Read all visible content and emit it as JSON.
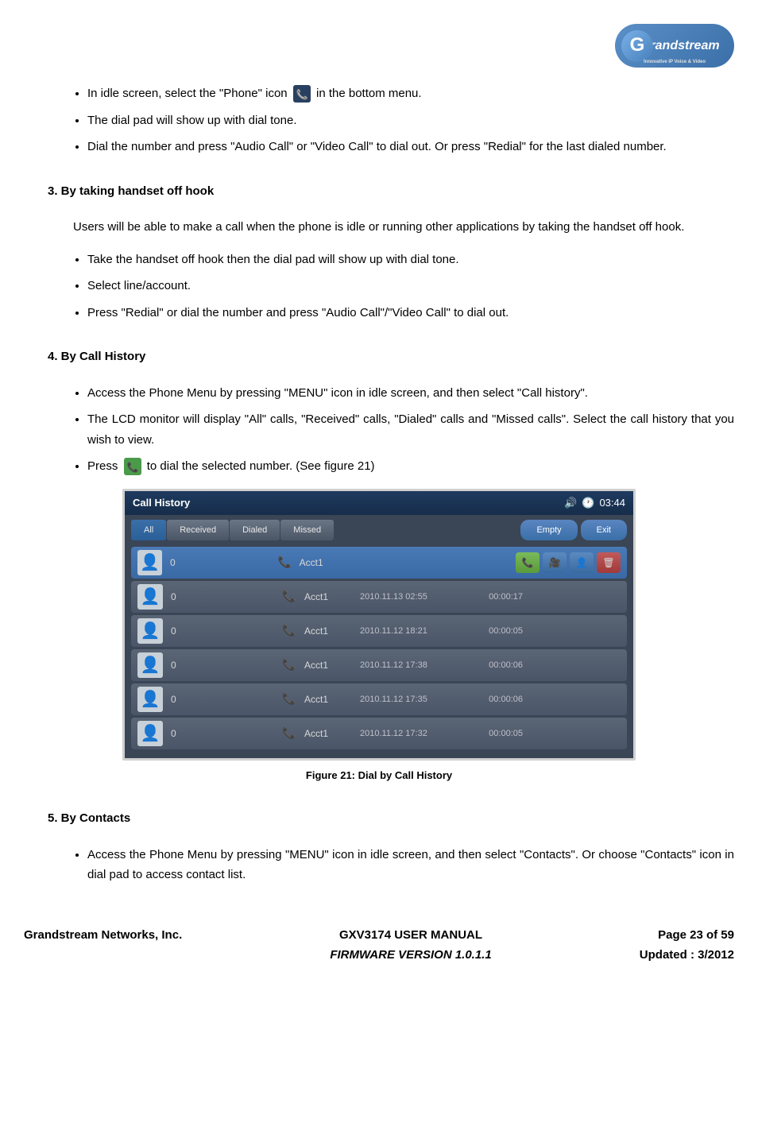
{
  "logo": {
    "text": "randstream",
    "tagline": "Innovative IP Voice & Video"
  },
  "bullets_top": [
    {
      "pre": "In idle screen, select the \"Phone\" icon",
      "post": " in the bottom menu.",
      "icon": "phone"
    },
    {
      "text": "The dial pad will show up with dial tone."
    },
    {
      "text": "Dial the number and press \"Audio Call\" or \"Video Call\" to dial out. Or press \"Redial\" for the last dialed number."
    }
  ],
  "section3": {
    "heading": "3.    By taking handset off hook",
    "intro": "Users will be able to make a call when the phone is idle or running other applications by taking the handset off hook.",
    "bullets": [
      "Take the handset off hook then the dial pad will show up with dial tone.",
      "Select line/account.",
      "Press \"Redial\" or dial the number and press \"Audio Call\"/\"Video Call\" to dial out."
    ]
  },
  "section4": {
    "heading": "4.    By Call History",
    "bullets": [
      {
        "text": "Access the Phone Menu by pressing \"MENU\" icon in idle screen, and then select \"Call history\"."
      },
      {
        "text": "The LCD monitor will display \"All\" calls, \"Received\" calls, \"Dialed\" calls and \"Missed calls\". Select the call history that you wish to view."
      },
      {
        "pre": "Press",
        "post": " to dial the selected number. (See figure 21)",
        "icon": "call"
      }
    ]
  },
  "figure_caption": "Figure 21: Dial by Call History",
  "call_history": {
    "title": "Call History",
    "time": "03:44",
    "tabs": [
      "All",
      "Received",
      "Dialed",
      "Missed"
    ],
    "active_tab": 0,
    "buttons": [
      "Empty",
      "Exit"
    ],
    "rows": [
      {
        "id": "0",
        "dir": "in",
        "acct": "Acct1",
        "date": "",
        "dur": "",
        "sel": true,
        "icons": true
      },
      {
        "id": "0",
        "dir": "in",
        "acct": "Acct1",
        "date": "2010.11.13  02:55",
        "dur": "00:00:17",
        "sel": false,
        "icons": false
      },
      {
        "id": "0",
        "dir": "in",
        "acct": "Acct1",
        "date": "2010.11.12  18:21",
        "dur": "00:00:05",
        "sel": false,
        "icons": false
      },
      {
        "id": "0",
        "dir": "out",
        "acct": "Acct1",
        "date": "2010.11.12  17:38",
        "dur": "00:00:06",
        "sel": false,
        "icons": false
      },
      {
        "id": "0",
        "dir": "out",
        "acct": "Acct1",
        "date": "2010.11.12  17:35",
        "dur": "00:00:06",
        "sel": false,
        "icons": false
      },
      {
        "id": "0",
        "dir": "in",
        "acct": "Acct1",
        "date": "2010.11.12  17:32",
        "dur": "00:00:05",
        "sel": false,
        "icons": false
      }
    ]
  },
  "section5": {
    "heading": "5.    By Contacts",
    "bullets": [
      "Access the Phone Menu by pressing \"MENU\" icon in idle screen, and then select \"Contacts\". Or choose \"Contacts\" icon in dial pad to access contact list."
    ]
  },
  "footer": {
    "company": "Grandstream Networks, Inc.",
    "manual": "GXV3174 USER MANUAL",
    "firmware": "FIRMWARE VERSION 1.0.1.1",
    "page": "Page 23 of 59",
    "updated": "Updated : 3/2012"
  }
}
